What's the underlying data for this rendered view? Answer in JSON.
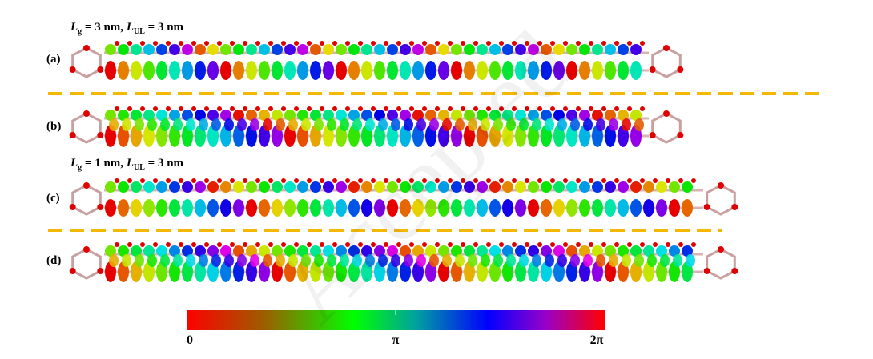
{
  "headings": [
    {
      "parts": [
        "L",
        "g",
        " = 3 nm, ",
        "L",
        "UL",
        " = 3 nm"
      ]
    },
    {
      "parts": [
        "L",
        "g",
        " = 1 nm, ",
        "L",
        "UL",
        " = 3 nm"
      ]
    }
  ],
  "panels": [
    "(a)",
    "(b)",
    "(c)",
    "(d)"
  ],
  "colorbar": {
    "ticks": [
      "0",
      "π",
      "2π"
    ]
  },
  "watermark": "Accepted"
}
